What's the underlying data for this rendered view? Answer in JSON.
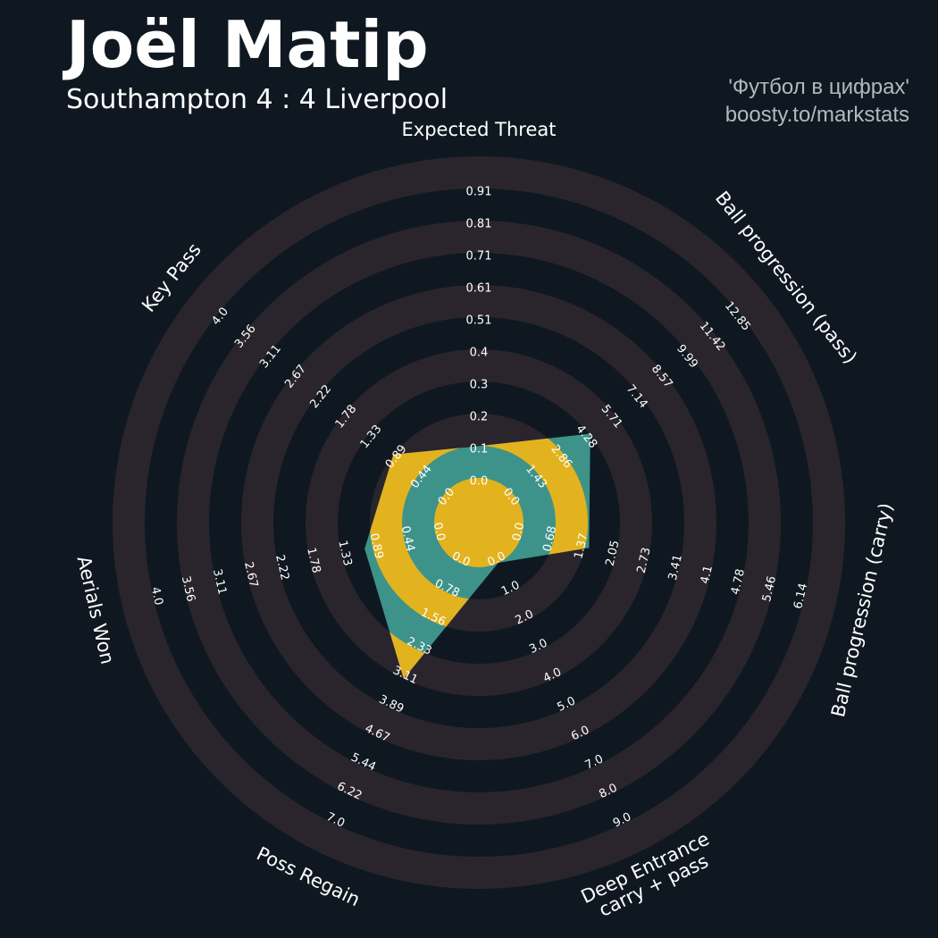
{
  "header": {
    "player_name": "Joël Matip",
    "match": "Southampton 4 : 4 Liverpool",
    "credit_line1": "'Футбол в цифрах'",
    "credit_line2": "boosty.to/markstats"
  },
  "colors": {
    "background": "#0f1820",
    "ring_band": "#2a252c",
    "player_fill": "#3d938a",
    "fill_accent": "#e2b31e",
    "text": "#ffffff"
  },
  "chart_data": {
    "type": "radar",
    "title": "Joël Matip",
    "subtitle": "Southampton 4 : 4 Liverpool",
    "params": [
      {
        "label": [
          "Expected Threat"
        ],
        "min": 0.0,
        "max": 1.01,
        "value": 0.1,
        "ticks": [
          "0.0",
          "0.1",
          "0.2",
          "0.3",
          "0.4",
          "0.51",
          "0.61",
          "0.71",
          "0.81",
          "0.91"
        ]
      },
      {
        "label": [
          "Ball progression (pass)"
        ],
        "min": 0.0,
        "max": 14.28,
        "value": 4.35,
        "ticks": [
          "0.0",
          "1.43",
          "2.86",
          "4.28",
          "5.71",
          "7.14",
          "8.57",
          "9.99",
          "11.42",
          "12.85"
        ]
      },
      {
        "label": [
          "Ball progression (carry)"
        ],
        "min": 0.0,
        "max": 6.82,
        "value": 1.45,
        "ticks": [
          "0.0",
          "0.68",
          "1.37",
          "2.05",
          "2.73",
          "3.41",
          "4.1",
          "4.78",
          "5.46",
          "6.14"
        ]
      },
      {
        "label": [
          "Deep Entrance",
          "carry + pass"
        ],
        "min": 0.0,
        "max": 10.0,
        "value": 0.0,
        "ticks": [
          "0.0",
          "1.0",
          "2.0",
          "3.0",
          "4.0",
          "5.0",
          "6.0",
          "7.0",
          "8.0",
          "9.0"
        ]
      },
      {
        "label": [
          "Poss Regain"
        ],
        "min": 0.0,
        "max": 7.78,
        "value": 3.11,
        "ticks": [
          "0.0",
          "0.78",
          "1.56",
          "2.33",
          "3.11",
          "3.89",
          "4.67",
          "5.44",
          "6.22",
          "7.0"
        ]
      },
      {
        "label": [
          "Aerials Won"
        ],
        "min": 0.0,
        "max": 4.44,
        "value": 1.0,
        "ticks": [
          "0.0",
          "0.44",
          "0.89",
          "1.33",
          "1.78",
          "2.22",
          "2.67",
          "3.11",
          "3.56",
          "4.0"
        ]
      },
      {
        "label": [
          "Key Pass"
        ],
        "min": 0.0,
        "max": 4.44,
        "value": 0.89,
        "ticks": [
          "0.0",
          "0.44",
          "0.89",
          "1.33",
          "1.78",
          "2.22",
          "2.67",
          "3.11",
          "3.56",
          "4.0"
        ]
      }
    ]
  }
}
